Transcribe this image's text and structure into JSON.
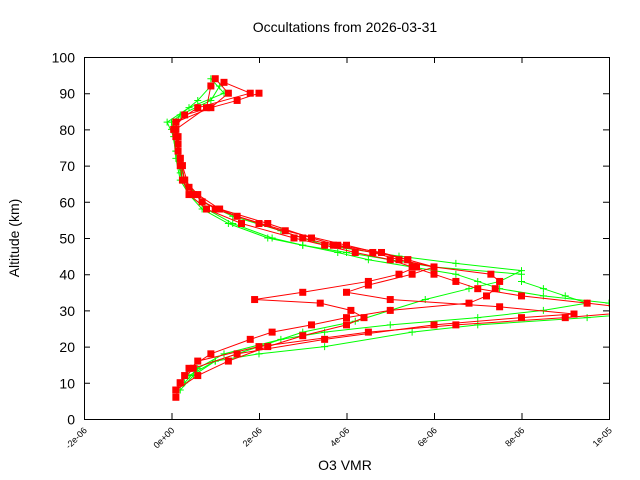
{
  "chart_data": {
    "type": "line",
    "title": "Occultations from 2026-03-31",
    "xlabel": "O3 VMR",
    "ylabel": "Altitude (km)",
    "xlim": [
      -2e-06,
      1e-05
    ],
    "ylim": [
      0,
      100
    ],
    "xticks": [
      -2e-06,
      0,
      2e-06,
      4e-06,
      6e-06,
      8e-06,
      1e-05
    ],
    "xtick_labels": [
      "-2e-06",
      "0e+00",
      "2e-06",
      "4e-06",
      "6e-06",
      "8e-06",
      "1e-05"
    ],
    "yticks": [
      0,
      10,
      20,
      30,
      40,
      50,
      60,
      70,
      80,
      90,
      100
    ],
    "ytick_labels": [
      "0",
      "10",
      "20",
      "30",
      "40",
      "50",
      "60",
      "70",
      "80",
      "90",
      "100"
    ],
    "x_unit_scale": 1e-06,
    "grid": false,
    "legend": "none",
    "colors": {
      "red": "#ff0000",
      "green": "#00ff00"
    },
    "series": [
      {
        "name": "profile-green-1",
        "color": "#00ff00",
        "marker": "plus",
        "alt": [
          8,
          12,
          16,
          18,
          20,
          24,
          26,
          28,
          30,
          31,
          32,
          34,
          36,
          38,
          40,
          42,
          44,
          46,
          48,
          50,
          54,
          58,
          62,
          66,
          72,
          78,
          82,
          86,
          90,
          94
        ],
        "vmr": [
          0.2,
          0.5,
          1,
          2,
          3.5,
          5.5,
          7,
          9.5,
          11.5,
          12,
          10,
          8.5,
          7.5,
          7,
          6.5,
          5.5,
          4.5,
          3.8,
          3,
          2.2,
          1.3,
          0.7,
          0.4,
          0.2,
          0.1,
          0.05,
          -0.1,
          0.4,
          1.2,
          0.9
        ]
      },
      {
        "name": "profile-green-2",
        "color": "#00ff00",
        "marker": "plus",
        "alt": [
          10,
          14,
          18,
          22,
          24,
          26,
          28,
          30,
          32,
          34,
          36,
          38,
          40,
          42,
          44,
          46,
          48,
          50,
          54,
          58,
          62,
          68,
          74,
          80,
          84,
          88,
          92
        ],
        "vmr": [
          0.3,
          0.6,
          1.2,
          2.5,
          3.5,
          5,
          7,
          8.5,
          9.5,
          9,
          8.5,
          8,
          8,
          6,
          5,
          4,
          3,
          2.3,
          1.4,
          0.8,
          0.4,
          0.2,
          0.1,
          0,
          0.2,
          0.9,
          1.1
        ]
      },
      {
        "name": "profile-green-3",
        "color": "#00ff00",
        "marker": "plus",
        "alt": [
          12,
          16,
          20,
          24,
          27,
          30,
          33,
          36,
          38,
          41,
          43,
          45,
          48,
          52,
          56,
          60,
          66,
          74,
          82,
          88,
          92
        ],
        "vmr": [
          0.4,
          1,
          2,
          3,
          4.2,
          5,
          5.8,
          6.8,
          7.5,
          8,
          6.5,
          5.2,
          3.5,
          2.5,
          1.4,
          0.7,
          0.3,
          0.1,
          0,
          0.6,
          0.9
        ]
      },
      {
        "name": "profile-red-1",
        "color": "#ff0000",
        "marker": "square",
        "alt": [
          8,
          12,
          16,
          20,
          24,
          26,
          28,
          30,
          32,
          34,
          36,
          38,
          40,
          42,
          44,
          46,
          48,
          50,
          54,
          58,
          62,
          66,
          70,
          74,
          78,
          82,
          86,
          90,
          93
        ],
        "vmr": [
          0.1,
          0.3,
          0.6,
          2,
          4.5,
          6.5,
          9,
          11,
          9.5,
          8,
          7,
          6.5,
          6,
          5.5,
          5,
          4.2,
          3.5,
          2.8,
          1.6,
          0.8,
          0.4,
          0.25,
          0.2,
          0.15,
          0.1,
          0.1,
          0.6,
          1.8,
          1.2
        ]
      },
      {
        "name": "profile-red-2",
        "color": "#ff0000",
        "marker": "square",
        "alt": [
          6,
          10,
          14,
          18,
          22,
          26,
          28,
          29,
          31,
          33,
          35,
          37,
          40,
          42,
          44,
          48,
          52,
          56,
          60,
          64,
          70,
          76,
          80,
          84,
          88,
          90
        ],
        "vmr": [
          0.1,
          0.2,
          0.5,
          1.5,
          3.5,
          6,
          8,
          9.2,
          7.5,
          5,
          4,
          4.5,
          5.5,
          6,
          5.4,
          4,
          2.6,
          1.5,
          0.7,
          0.4,
          0.25,
          0.15,
          0.05,
          0.3,
          1.5,
          2
        ]
      },
      {
        "name": "profile-red-3",
        "color": "#ff0000",
        "marker": "square",
        "alt": [
          10,
          14,
          18,
          22,
          24,
          26,
          28,
          30,
          32,
          34,
          36,
          38,
          40,
          42,
          44,
          46,
          48,
          50,
          54,
          58,
          62,
          66,
          72,
          78,
          82,
          86,
          90,
          94
        ],
        "vmr": [
          0.2,
          0.4,
          0.9,
          1.8,
          2.3,
          3.2,
          4,
          5,
          6.8,
          7.2,
          7.4,
          7.5,
          7.3,
          6,
          5.2,
          4.6,
          3.7,
          3,
          2,
          1,
          0.5,
          0.3,
          0.2,
          0.15,
          0.1,
          0.9,
          1.3,
          1
        ]
      },
      {
        "name": "profile-red-4",
        "color": "#ff0000",
        "marker": "square",
        "alt": [
          8,
          12,
          16,
          20,
          23,
          26,
          28,
          30,
          32,
          33,
          35,
          38,
          40,
          42,
          44,
          46,
          48,
          50,
          54,
          58,
          62,
          66,
          72,
          80,
          86,
          92
        ],
        "vmr": [
          0.1,
          0.6,
          1.3,
          2.2,
          3,
          4,
          4.4,
          4.1,
          3.4,
          1.9,
          3,
          4.5,
          5.2,
          5.6,
          5.4,
          4.8,
          3.8,
          3.2,
          2.2,
          1.1,
          0.6,
          0.3,
          0.2,
          0.1,
          0.8,
          0.9
        ]
      }
    ]
  }
}
